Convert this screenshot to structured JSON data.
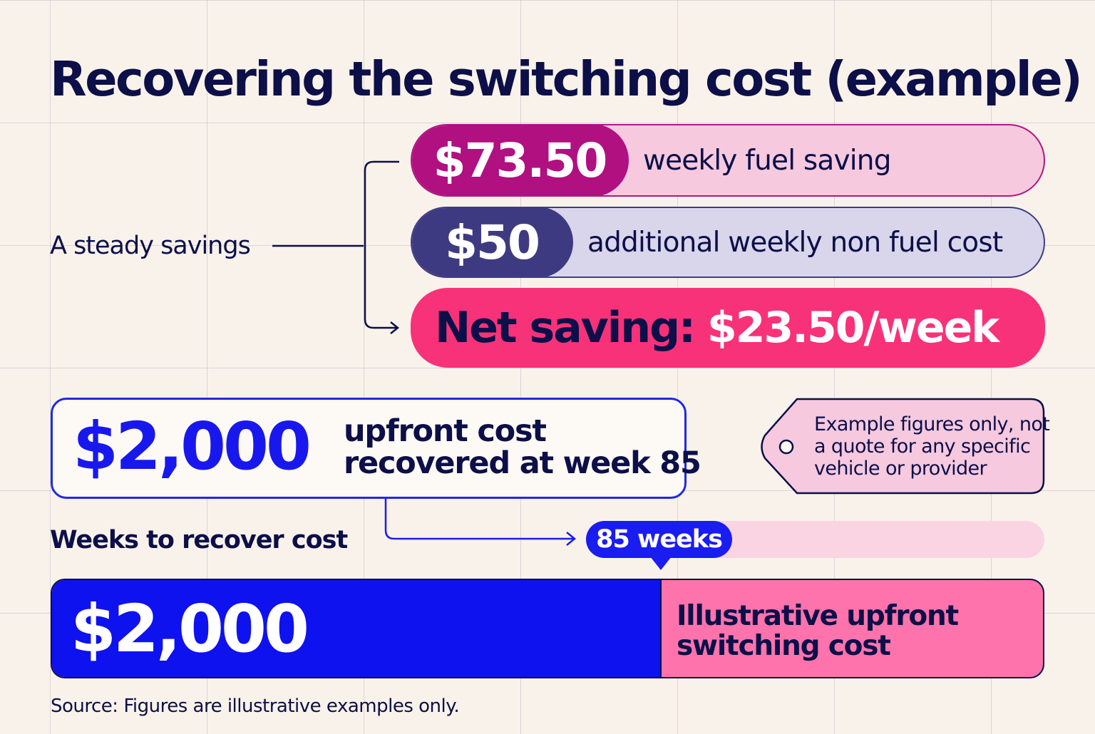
{
  "title": "Recovering the switching cost (example)",
  "savings": {
    "group_label": "A steady savings",
    "rows": [
      {
        "amount": "$73.50",
        "label": "weekly fuel saving"
      },
      {
        "amount": "$50",
        "label": "additional weekly non fuel cost"
      }
    ],
    "net": {
      "prefix": "Net saving:",
      "value": "$23.50/week"
    }
  },
  "upfront": {
    "amount": "$2,000",
    "line1": "upfront cost",
    "line2": "recovered at week 85"
  },
  "note": {
    "line1": "Example figures only, not",
    "line2": "a quote for any specific",
    "line3": "vehicle or provider"
  },
  "weeks": {
    "label": "Weeks to recover cost",
    "badge": "85 weeks"
  },
  "cost_bar": {
    "amount": "$2,000",
    "line1": "Illustrative upfront",
    "line2": "switching cost",
    "fill_fraction": 0.614
  },
  "source": "Source: Figures are illustrative examples only.",
  "colors": {
    "navy": "#0c0f48",
    "magenta": "#b01080",
    "indigo": "#3e3a82",
    "hot_pink": "#f83278",
    "blue": "#1a1df0",
    "pink": "#fe73ac",
    "background": "#f9f2ea"
  }
}
